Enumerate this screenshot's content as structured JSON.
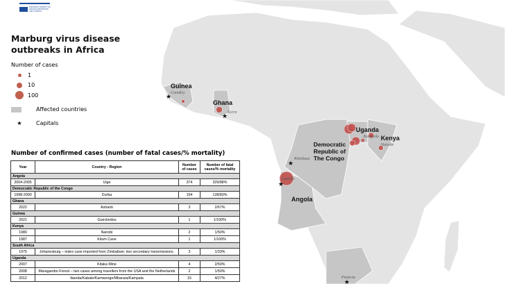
{
  "logo": {
    "text": "ecdc",
    "subtitle": "EUROPEAN CENTRE FOR DISEASE PREVENTION AND CONTROL"
  },
  "title": "Marburg virus disease outbreaks in Africa",
  "legend": {
    "heading": "Number of cases",
    "sizes": [
      "1",
      "10",
      "100"
    ],
    "affected": "Affected countries",
    "capitals": "Capitals"
  },
  "colors": {
    "case": "#c0504d",
    "affected": "#c6c6c6",
    "land": "#e4e4e4"
  },
  "map_labels": {
    "countries": [
      "Guinea",
      "Ghana",
      "Uganda",
      "Kenya",
      "Democratic Republic of The Congo",
      "Angola"
    ],
    "cities": [
      "Conakry",
      "Accra",
      "Kampala",
      "Nairobi",
      "Kinshasa",
      "Luanda",
      "Pretoria"
    ]
  },
  "table": {
    "title": "Number of confirmed cases (number of fatal cases/% mortality)",
    "headers": [
      "Year",
      "Country - Region",
      "Number of cases",
      "Number of fatal cases/% mortality"
    ],
    "groups": [
      {
        "country": "Angola",
        "rows": [
          [
            "2004-2005",
            "Uige",
            "374",
            "329/88%"
          ]
        ]
      },
      {
        "country": "Democratic Republic of the Congo",
        "rows": [
          [
            "1998-2000",
            "Durba",
            "154",
            "128/83%"
          ]
        ]
      },
      {
        "country": "Ghana",
        "rows": [
          [
            "2022",
            "Ashanti",
            "3",
            "2/67%"
          ]
        ]
      },
      {
        "country": "Guinea",
        "rows": [
          [
            "2021",
            "Gueckedou",
            "1",
            "1/100%"
          ]
        ]
      },
      {
        "country": "Kenya",
        "rows": [
          [
            "1980",
            "Nairobi",
            "2",
            "1/50%"
          ],
          [
            "1987",
            "Kitum Cave",
            "1",
            "1/100%"
          ]
        ]
      },
      {
        "country": "South Africa",
        "rows": [
          [
            "1975",
            "Johanesburg – index case imported from Zimbabwe; two secondary transmissions.",
            "3",
            "1/33%"
          ]
        ]
      },
      {
        "country": "Uganda",
        "rows": [
          [
            "2007",
            "Kitaka Mine",
            "4",
            "2/50%"
          ],
          [
            "2008",
            "Maragambo Forest – two cases among travellers from the USA and the Netherlands",
            "2",
            "1/50%"
          ],
          [
            "2012",
            "Ibanda/Kabale/Kamwenge/Mbarara/Kampala",
            "15",
            "4/27%"
          ]
        ]
      }
    ]
  }
}
